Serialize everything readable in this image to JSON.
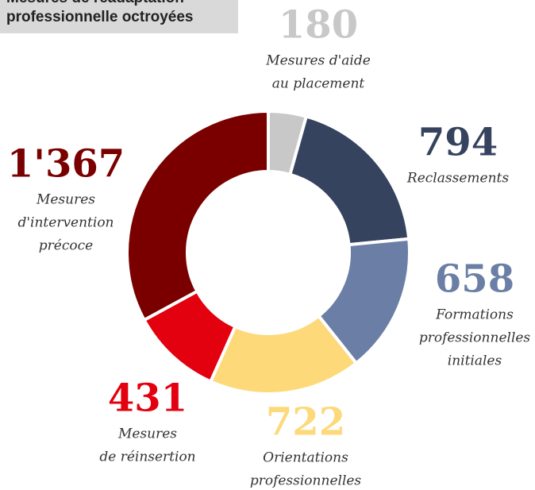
{
  "chart_data": {
    "type": "donut",
    "title": [
      "Mesures de réadaptation",
      "professionnelle octroyées"
    ],
    "categories": [
      [
        "Mesures d'aide",
        "au placement"
      ],
      [
        "Reclassements"
      ],
      [
        "Formations",
        "professionnelles",
        "initiales"
      ],
      [
        "Orientations",
        "professionnelles"
      ],
      [
        "Mesures",
        "de réinsertion"
      ],
      [
        "Mesures",
        "d'intervention",
        "précoce"
      ]
    ],
    "values": [
      180,
      794,
      658,
      722,
      431,
      1367
    ],
    "value_labels": [
      "180",
      "794",
      "658",
      "722",
      "431",
      "1'367"
    ],
    "colors": [
      "#c8c8c8",
      "#36435e",
      "#6b7fa6",
      "#fdd97a",
      "#e3000f",
      "#7a0000"
    ]
  }
}
